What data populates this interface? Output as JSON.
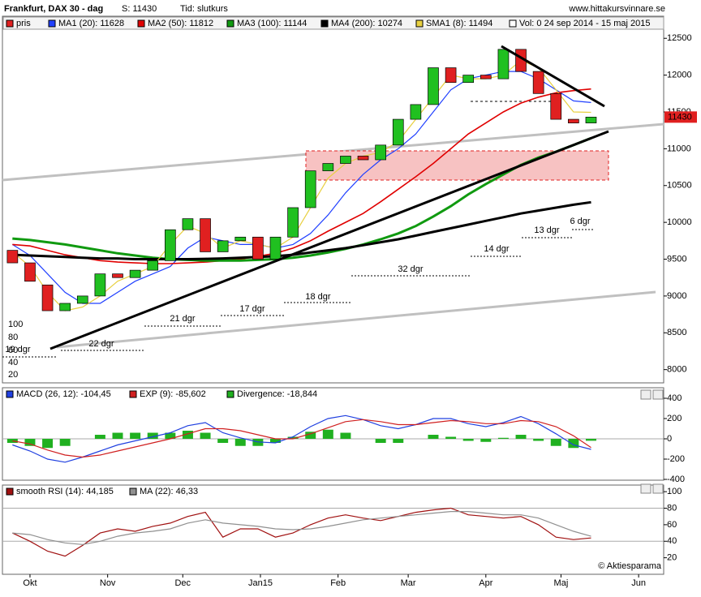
{
  "chart_data": [
    {
      "type": "candlestick",
      "title": "Frankfurt, DAX 30 - dag",
      "price_text": "S: 11430",
      "time_text": "Tid: slutkurs",
      "site": "www.hittakursvinnare.se",
      "price_series_name": "pris",
      "price_series_color": "#e02020",
      "volume_label": "Vol: 0 24 sep 2014 - 15 maj 2015",
      "last_price": 11430,
      "up_color": "#20c020",
      "down_color": "#e02020",
      "x": [
        0,
        7,
        14,
        21,
        28,
        35,
        42,
        49,
        56,
        63,
        70,
        77,
        84,
        91,
        98,
        105,
        112,
        119,
        126,
        133,
        140,
        147,
        154,
        161,
        168,
        175,
        182,
        189,
        196,
        203,
        210,
        217,
        224,
        231
      ],
      "open": [
        9620,
        9450,
        9150,
        8800,
        8900,
        9000,
        9300,
        9250,
        9350,
        9480,
        9900,
        10050,
        9600,
        9750,
        9800,
        9500,
        9800,
        10200,
        10700,
        10800,
        10900,
        10850,
        11050,
        11400,
        11600,
        12100,
        11900,
        12000,
        11950,
        12350,
        12050,
        11750,
        11400,
        11350
      ],
      "close": [
        9450,
        9200,
        8800,
        8900,
        9000,
        9300,
        9250,
        9350,
        9480,
        9900,
        10050,
        9600,
        9750,
        9800,
        9500,
        9800,
        10200,
        10700,
        10800,
        10900,
        10850,
        11050,
        11400,
        11600,
        12100,
        11900,
        12000,
        11950,
        12350,
        12050,
        11750,
        11400,
        11350,
        11430
      ],
      "series": [
        {
          "name": "MA1 (20): 11628",
          "color": "#2040ff",
          "values": [
            9700,
            9550,
            9300,
            9050,
            8900,
            8900,
            9050,
            9200,
            9300,
            9400,
            9650,
            9800,
            9750,
            9700,
            9700,
            9650,
            9700,
            9850,
            10100,
            10400,
            10650,
            10850,
            11000,
            11200,
            11500,
            11800,
            11950,
            12000,
            12050,
            12050,
            11950,
            11800,
            11650,
            11628
          ]
        },
        {
          "name": "MA2 (50): 11812",
          "color": "#e00000",
          "values": [
            9700,
            9680,
            9620,
            9560,
            9520,
            9480,
            9460,
            9450,
            9440,
            9440,
            9450,
            9460,
            9480,
            9500,
            9540,
            9580,
            9650,
            9750,
            9880,
            10000,
            10120,
            10280,
            10450,
            10620,
            10800,
            11000,
            11200,
            11350,
            11500,
            11620,
            11700,
            11760,
            11790,
            11812
          ]
        },
        {
          "name": "MA3 (100): 11144",
          "color": "#109a10",
          "values": [
            9780,
            9760,
            9730,
            9700,
            9660,
            9620,
            9580,
            9550,
            9520,
            9500,
            9490,
            9480,
            9480,
            9480,
            9490,
            9500,
            9520,
            9550,
            9590,
            9640,
            9700,
            9770,
            9850,
            9950,
            10080,
            10220,
            10380,
            10520,
            10650,
            10780,
            10880,
            10960,
            11050,
            11144
          ]
        },
        {
          "name": "MA4 (200): 10274",
          "color": "#000000",
          "values": [
            9560,
            9550,
            9540,
            9530,
            9520,
            9510,
            9510,
            9500,
            9500,
            9500,
            9500,
            9505,
            9510,
            9520,
            9530,
            9540,
            9560,
            9590,
            9620,
            9650,
            9690,
            9730,
            9770,
            9820,
            9870,
            9920,
            9970,
            10020,
            10070,
            10120,
            10160,
            10200,
            10240,
            10274
          ]
        },
        {
          "name": "SMA1 (8): 11494",
          "color": "#e8d040",
          "values": [
            9600,
            9400,
            9050,
            8800,
            8850,
            9000,
            9200,
            9300,
            9400,
            9700,
            9950,
            9850,
            9650,
            9750,
            9700,
            9650,
            9800,
            10200,
            10600,
            10800,
            10900,
            10950,
            11100,
            11400,
            11700,
            12000,
            11950,
            11950,
            12000,
            12200,
            12100,
            11800,
            11500,
            11494
          ]
        }
      ],
      "xlim": [
        -4,
        260
      ],
      "ylim": [
        7820,
        12800
      ],
      "yticks": [
        8000,
        8500,
        9000,
        9500,
        10000,
        10500,
        11000,
        11500,
        12000,
        12500
      ],
      "annotations": [
        "19 dgr",
        "22 dgr",
        "21 dgr",
        "17 dgr",
        "18 dgr",
        "32 dgr",
        "14 dgr",
        "13 dgr",
        "6 dgr"
      ],
      "left_scale_labels": [
        "100",
        "80",
        "60",
        "40",
        "20"
      ]
    },
    {
      "type": "line",
      "x": [
        0,
        7,
        14,
        21,
        28,
        35,
        42,
        49,
        56,
        63,
        70,
        77,
        84,
        91,
        98,
        105,
        112,
        119,
        126,
        133,
        140,
        147,
        154,
        161,
        168,
        175,
        182,
        189,
        196,
        203,
        210,
        217,
        224,
        231
      ],
      "series": [
        {
          "name": "MACD (26, 12): -104,45",
          "color": "#2040e0",
          "values": [
            -60,
            -120,
            -200,
            -230,
            -180,
            -120,
            -60,
            -20,
            20,
            60,
            130,
            160,
            60,
            10,
            -30,
            -40,
            20,
            120,
            200,
            230,
            190,
            130,
            100,
            140,
            200,
            200,
            150,
            120,
            160,
            220,
            150,
            50,
            -60,
            -104
          ]
        },
        {
          "name": "EXP (9): -85,602",
          "color": "#d02020",
          "values": [
            -20,
            -50,
            -110,
            -160,
            -180,
            -160,
            -120,
            -80,
            -40,
            0,
            50,
            100,
            100,
            80,
            40,
            0,
            0,
            50,
            110,
            170,
            190,
            170,
            140,
            140,
            160,
            180,
            170,
            150,
            150,
            180,
            170,
            120,
            30,
            -86
          ]
        },
        {
          "name": "Divergence: -18,844",
          "color": "#20b020",
          "type": "bar",
          "values": [
            -40,
            -70,
            -90,
            -70,
            0,
            40,
            60,
            60,
            60,
            60,
            80,
            60,
            -40,
            -70,
            -70,
            -40,
            20,
            70,
            90,
            60,
            0,
            -40,
            -40,
            0,
            40,
            20,
            -20,
            -30,
            10,
            40,
            -20,
            -70,
            -90,
            -19
          ]
        }
      ],
      "xlim": [
        -4,
        260
      ],
      "ylim": [
        -408,
        504
      ],
      "yticks": [
        400,
        200,
        0,
        -200,
        -400
      ]
    },
    {
      "type": "line",
      "x": [
        0,
        7,
        14,
        21,
        28,
        35,
        42,
        49,
        56,
        63,
        70,
        77,
        84,
        91,
        98,
        105,
        112,
        119,
        126,
        133,
        140,
        147,
        154,
        161,
        168,
        175,
        182,
        189,
        196,
        203,
        210,
        217,
        224,
        231
      ],
      "series": [
        {
          "name": "smooth RSI (14): 44,185",
          "color": "#a01010",
          "values": [
            50,
            40,
            28,
            22,
            35,
            50,
            55,
            52,
            58,
            62,
            70,
            75,
            45,
            55,
            55,
            45,
            50,
            60,
            68,
            72,
            68,
            65,
            70,
            75,
            78,
            80,
            72,
            70,
            68,
            70,
            60,
            45,
            42,
            44
          ]
        },
        {
          "name": "MA (22): 46,33",
          "color": "#909090",
          "values": [
            50,
            48,
            42,
            38,
            36,
            40,
            46,
            50,
            52,
            55,
            62,
            66,
            62,
            60,
            58,
            55,
            54,
            55,
            58,
            62,
            66,
            68,
            70,
            72,
            74,
            76,
            76,
            74,
            72,
            72,
            68,
            60,
            52,
            46
          ]
        }
      ],
      "xlim": [
        -4,
        260
      ],
      "ylim": [
        0,
        108
      ],
      "yticks": [
        20,
        40,
        60,
        80,
        100
      ],
      "reference_lines": [
        40,
        80
      ],
      "xticks": [
        {
          "value": 7,
          "label": "Okt"
        },
        {
          "value": 38,
          "label": "Nov"
        },
        {
          "value": 68,
          "label": "Dec"
        },
        {
          "value": 99,
          "label": "Jan15"
        },
        {
          "value": 130,
          "label": "Feb"
        },
        {
          "value": 158,
          "label": "Mar"
        },
        {
          "value": 189,
          "label": "Apr"
        },
        {
          "value": 219,
          "label": "Maj"
        },
        {
          "value": 250,
          "label": "Jun"
        }
      ],
      "credit": "© Aktiesparama"
    }
  ]
}
